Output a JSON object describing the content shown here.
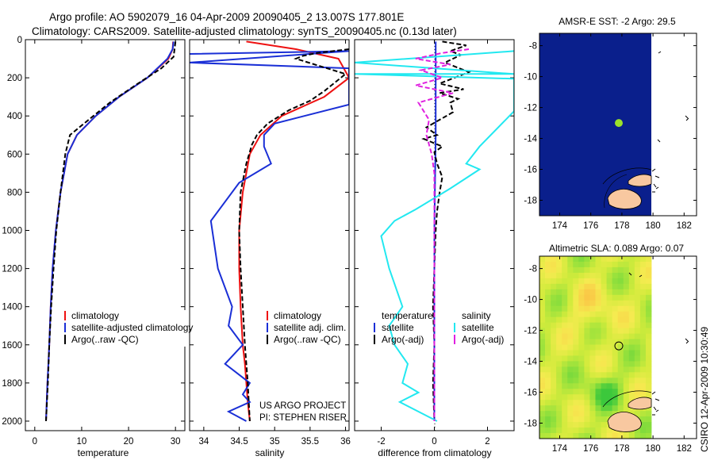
{
  "header": {
    "title": "Argo profile: AO 5902079_16 04-Apr-2009 20090405_2 13.007S 177.801E",
    "subtitle": "Climatology: CARS2009. Satellite-adjusted climatology: synTS_20090405.nc (0.13d later)"
  },
  "depth_ticks": [
    "0",
    "200",
    "400",
    "600",
    "800",
    "1000",
    "1200",
    "1400",
    "1600",
    "1800",
    "2000"
  ],
  "colors": {
    "climatology": "#ee1111",
    "satellite": "#1a2fd6",
    "argo": "#000000",
    "salinity_satellite": "#22e8f0",
    "salinity_argo": "#e020e0",
    "sst_ocean": "#0a1f8c",
    "land": "#f8c8a0",
    "float_marker": "#9be22a"
  },
  "chart_data": [
    {
      "id": "temperature",
      "type": "line",
      "xlabel": "temperature",
      "ylabel": "",
      "xlim": [
        -2,
        32
      ],
      "ylim": [
        0,
        2050
      ],
      "y_reversed": true,
      "x_ticks": [
        0,
        10,
        20,
        30
      ],
      "legend": [
        "climatology",
        "satellite-adjusted climatology",
        "Argo(..raw -QC)"
      ],
      "series": [
        {
          "name": "climatology",
          "color": "#ee1111",
          "dash": "",
          "x": [
            29.5,
            29.4,
            28.5,
            24,
            18,
            13,
            9,
            7,
            5.5,
            4.5,
            3.8,
            3.4,
            3.1,
            2.9,
            2.7,
            2.55,
            2.4
          ],
          "y": [
            10,
            50,
            100,
            200,
            300,
            400,
            500,
            600,
            800,
            1000,
            1200,
            1400,
            1600,
            1700,
            1800,
            1900,
            2000
          ]
        },
        {
          "name": "satellite-adjusted climatology",
          "color": "#1a2fd6",
          "dash": "",
          "x": [
            29.6,
            29.4,
            28.3,
            24,
            18,
            13,
            9,
            7,
            5.5,
            4.5,
            3.8,
            3.4,
            3.1,
            2.9,
            2.7,
            2.55,
            2.4
          ],
          "y": [
            10,
            50,
            100,
            200,
            300,
            400,
            500,
            600,
            800,
            1000,
            1200,
            1400,
            1600,
            1700,
            1800,
            1900,
            2000
          ]
        },
        {
          "name": "Argo(..raw -QC)",
          "color": "#000000",
          "dash": "6,3",
          "x": [
            30,
            29.8,
            29.6,
            27,
            22,
            16,
            12.5,
            10,
            7.5,
            6.5,
            5.5,
            4.6,
            4,
            3.5,
            3.1,
            2.8,
            2.6,
            2.4
          ],
          "y": [
            10,
            50,
            90,
            150,
            230,
            330,
            400,
            450,
            500,
            600,
            800,
            1000,
            1200,
            1400,
            1600,
            1800,
            1900,
            2000
          ]
        }
      ]
    },
    {
      "id": "salinity",
      "type": "line",
      "xlabel": "salinity",
      "ylabel": "",
      "xlim": [
        33.8,
        36.05
      ],
      "ylim": [
        0,
        2050
      ],
      "y_reversed": true,
      "x_ticks": [
        34,
        34.5,
        35,
        35.5,
        36
      ],
      "legend": [
        "climatology",
        "satellite adj. clim.",
        "Argo(..raw -QC)"
      ],
      "series": [
        {
          "name": "climatology",
          "color": "#ee1111",
          "dash": "",
          "x": [
            34.6,
            35.3,
            35.9,
            36.05,
            35.7,
            35.1,
            34.8,
            34.65,
            34.55,
            34.5,
            34.5,
            34.52,
            34.55,
            34.58,
            34.6,
            34.62,
            34.65
          ],
          "y": [
            10,
            50,
            100,
            200,
            300,
            400,
            500,
            600,
            800,
            1000,
            1200,
            1400,
            1600,
            1700,
            1800,
            1900,
            2000
          ]
        },
        {
          "name": "satellite adj. clim.",
          "color": "#1a2fd6",
          "dash": "",
          "x": [
            33.8,
            36.05,
            33.8,
            36.05,
            36.05,
            35,
            34.85,
            34.85,
            34.95,
            34.5,
            34.1,
            34.2,
            34.4,
            34.35,
            34.55,
            34.3,
            34.65,
            34.55,
            34.65,
            34.35,
            34.6
          ],
          "y": [
            75,
            60,
            120,
            150,
            340,
            440,
            500,
            560,
            650,
            750,
            950,
            1200,
            1400,
            1500,
            1600,
            1700,
            1800,
            1860,
            1900,
            1950,
            2000
          ]
        },
        {
          "name": "Argo(..raw -QC)",
          "color": "#000000",
          "dash": "6,3",
          "x": [
            36.05,
            35.6,
            35.4,
            35.3,
            36,
            35.7,
            35.5,
            35.2,
            34.9,
            34.75,
            34.68,
            34.6,
            34.52,
            34.5,
            34.52,
            34.55,
            34.58,
            34.62,
            34.65
          ],
          "y": [
            50,
            70,
            85,
            100,
            180,
            270,
            320,
            370,
            440,
            500,
            550,
            650,
            800,
            1000,
            1200,
            1400,
            1600,
            1800,
            2000
          ]
        }
      ]
    },
    {
      "id": "difference",
      "type": "line",
      "xlabel": "difference from climatology",
      "ylabel": "",
      "xlim": [
        -3,
        3
      ],
      "ylim": [
        0,
        2050
      ],
      "y_reversed": true,
      "x_ticks": [
        -2,
        0,
        2
      ],
      "legend_groups": [
        {
          "title": "temperature",
          "entries": [
            "satellite",
            "Argo(-adj)"
          ]
        },
        {
          "title": "salinity",
          "entries": [
            "satellite",
            "Argo(-adj)"
          ]
        }
      ],
      "series": [
        {
          "name": "temperature satellite",
          "color": "#1a2fd6",
          "dash": "",
          "x": [
            0.05,
            0.05,
            0.0,
            0.0,
            0.0
          ],
          "y": [
            10,
            500,
            1000,
            1500,
            2000
          ]
        },
        {
          "name": "temperature Argo(-adj)",
          "color": "#000000",
          "dash": "6,3",
          "x": [
            0.3,
            1.2,
            0.6,
            1.0,
            0.4,
            1.3,
            0.2,
            1.1,
            0.2,
            0.9,
            0.6,
            0.7,
            -0.3,
            0.1,
            -0.4,
            0.3,
            0.0,
            0.1,
            0.3,
            0.2,
            0.1,
            0.05,
            0.0,
            -0.05,
            0.0,
            -0.05,
            0.0
          ],
          "y": [
            10,
            30,
            60,
            80,
            120,
            170,
            230,
            260,
            280,
            310,
            330,
            380,
            460,
            500,
            520,
            560,
            590,
            650,
            720,
            800,
            900,
            1000,
            1200,
            1400,
            1600,
            1800,
            2000
          ]
        },
        {
          "name": "salinity satellite",
          "color": "#22e8f0",
          "dash": "",
          "x": [
            3,
            -3,
            3,
            -3,
            3,
            3,
            1.7,
            1.2,
            1.7,
            0.6,
            -0.7,
            -1.5,
            -2,
            -1.7,
            -1.2,
            -1.7,
            -1.5,
            -1.0,
            -1.2,
            -0.6,
            -1.3,
            0.1
          ],
          "y": [
            60,
            120,
            180,
            180,
            205,
            375,
            560,
            650,
            680,
            780,
            890,
            950,
            1030,
            1200,
            1400,
            1500,
            1600,
            1700,
            1800,
            1850,
            1900,
            2000
          ]
        },
        {
          "name": "salinity Argo(-adj)",
          "color": "#e020e0",
          "dash": "6,3",
          "x": [
            1.3,
            0.3,
            -0.7,
            0.6,
            -0.5,
            0.3,
            -0.7,
            0.7,
            -0.6,
            -0.2,
            -0.3,
            -0.1,
            0.0,
            0.0,
            0.0,
            0.0,
            0.0
          ],
          "y": [
            50,
            70,
            100,
            130,
            160,
            200,
            240,
            280,
            330,
            420,
            500,
            600,
            700,
            800,
            1000,
            1500,
            2000
          ]
        }
      ]
    },
    {
      "id": "sst_map",
      "type": "heatmap",
      "title": "AMSR-E SST: -2 Argo: 29.5",
      "xlim": [
        172.7,
        182.8
      ],
      "ylim": [
        -19,
        -7.2
      ],
      "x_ticks": [
        174,
        176,
        178,
        180,
        182
      ],
      "y_ticks": [
        -8,
        -10,
        -12,
        -14,
        -16,
        -18
      ],
      "float_position": {
        "lon": 177.8,
        "lat": -13.0
      }
    },
    {
      "id": "sla_map",
      "type": "heatmap",
      "title": "Altimetric SLA: 0.089 Argo: 0.07",
      "xlim": [
        172.7,
        182.8
      ],
      "ylim": [
        -19,
        -7.2
      ],
      "x_ticks": [
        174,
        176,
        178,
        180,
        182
      ],
      "y_ticks": [
        -8,
        -10,
        -12,
        -14,
        -16,
        -18
      ],
      "float_position": {
        "lon": 177.8,
        "lat": -13.0
      }
    }
  ],
  "footer": {
    "project": "US ARGO PROJECT",
    "pi": "PI: STEPHEN RISER",
    "stamp": "CSIRO 12-Apr-2009 10:30:49"
  }
}
